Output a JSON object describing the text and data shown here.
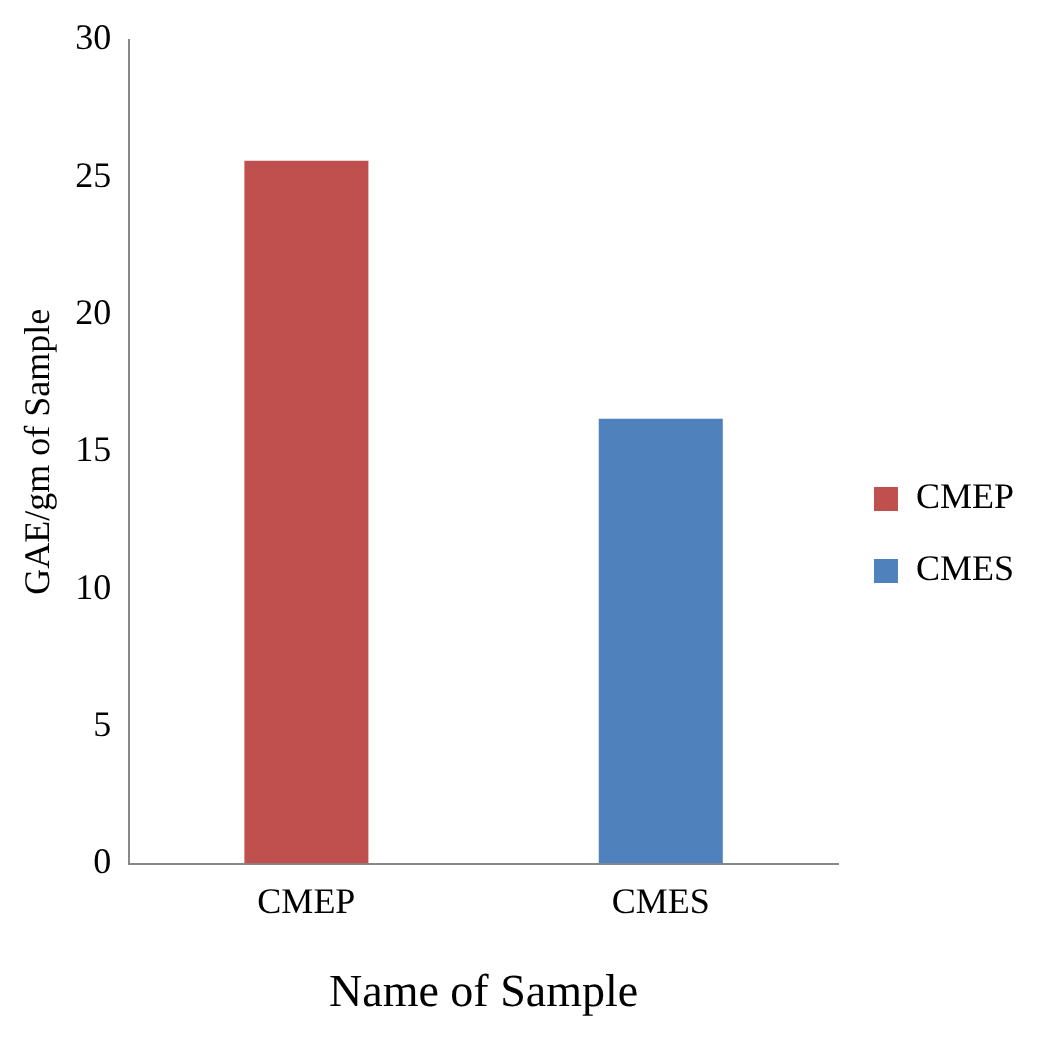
{
  "chart_data": {
    "type": "bar",
    "xlabel": "Name of Sample",
    "ylabel": "GAE/gm of Sample",
    "categories": [
      "CMEP",
      "CMES"
    ],
    "series": [
      {
        "name": "CMEP",
        "color": "#c0504d",
        "values": [
          25.6,
          null
        ]
      },
      {
        "name": "CMES",
        "color": "#4f81bd",
        "values": [
          null,
          16.2
        ]
      }
    ],
    "ylim": [
      0,
      30
    ],
    "yticks": [
      0,
      5,
      10,
      15,
      20,
      25,
      30
    ],
    "grid": false,
    "legend": "right"
  }
}
